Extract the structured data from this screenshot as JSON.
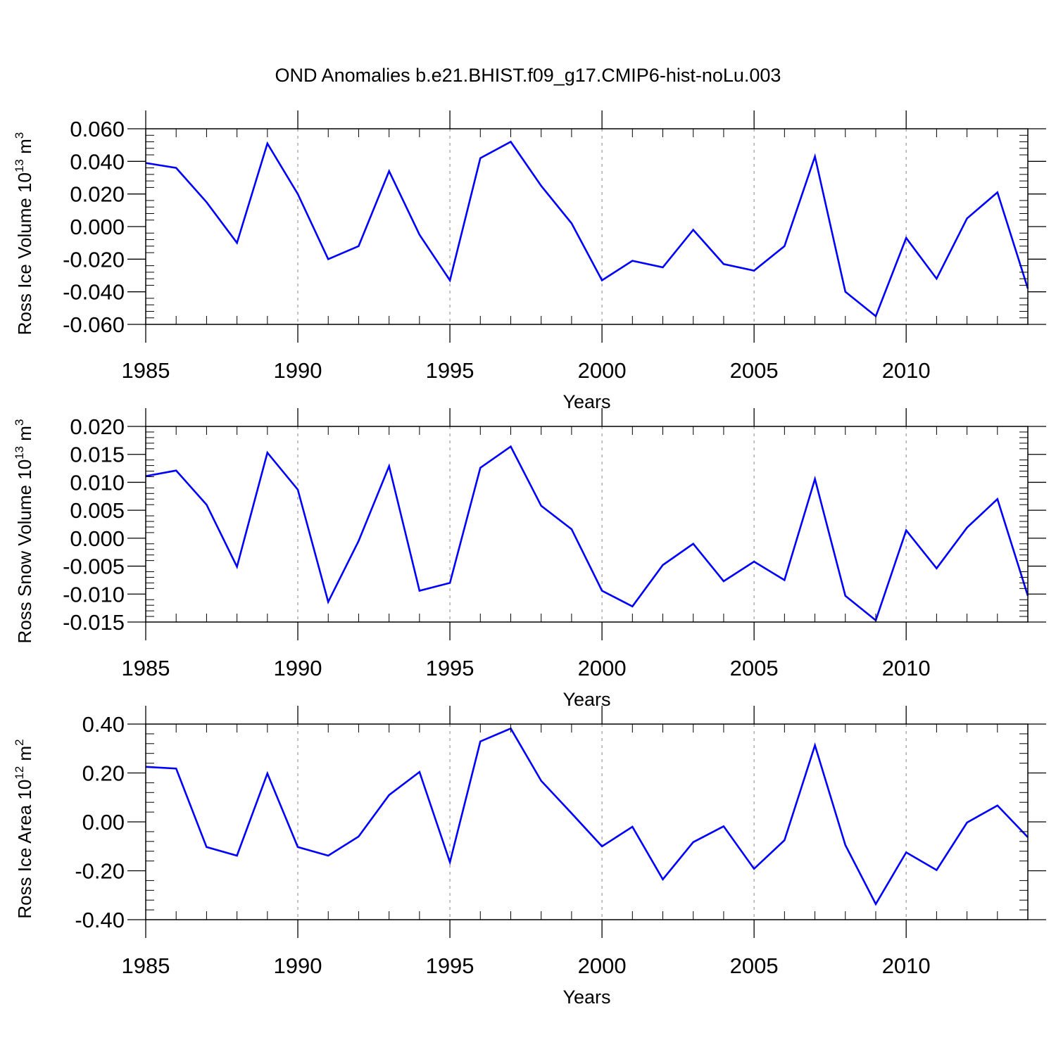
{
  "title": "OND Anomalies b.e21.BHIST.f09_g17.CMIP6-hist-noLu.003",
  "colors": {
    "line": "#0000ff",
    "axis": "#000000",
    "grid": "#999999"
  },
  "chart_data": [
    {
      "type": "line",
      "ylabel": "Ross Ice Volume 10",
      "ylabel_sup": "13",
      "ylabel_unit": "m",
      "ylabel_unit_sup": "3",
      "xlabel": "Years",
      "xlim": [
        1985,
        2014
      ],
      "ylim": [
        -0.06,
        0.06
      ],
      "yticks": [
        "0.060",
        "0.040",
        "0.020",
        "0.000",
        "-0.020",
        "-0.040",
        "-0.060"
      ],
      "ytick_values": [
        0.06,
        0.04,
        0.02,
        0.0,
        -0.02,
        -0.04,
        -0.06
      ],
      "xticks": [
        "1985",
        "1990",
        "1995",
        "2000",
        "2005",
        "2010"
      ],
      "xtick_values": [
        1985,
        1990,
        1995,
        2000,
        2005,
        2010
      ],
      "grid": "vertical dashed at major x ticks",
      "x": [
        1985,
        1986,
        1987,
        1988,
        1989,
        1990,
        1991,
        1992,
        1993,
        1994,
        1995,
        1996,
        1997,
        1998,
        1999,
        2000,
        2001,
        2002,
        2003,
        2004,
        2005,
        2006,
        2007,
        2008,
        2009,
        2010,
        2011,
        2012,
        2013,
        2014
      ],
      "values": [
        0.039,
        0.036,
        0.015,
        -0.01,
        0.051,
        0.02,
        -0.02,
        -0.012,
        0.034,
        -0.005,
        -0.033,
        0.042,
        0.052,
        0.025,
        0.002,
        -0.033,
        -0.021,
        -0.025,
        -0.002,
        -0.023,
        -0.027,
        -0.012,
        0.043,
        -0.04,
        -0.055,
        -0.007,
        -0.032,
        0.005,
        0.021,
        -0.038
      ]
    },
    {
      "type": "line",
      "ylabel": "Ross Snow Volume 10",
      "ylabel_sup": "13",
      "ylabel_unit": "m",
      "ylabel_unit_sup": "3",
      "xlabel": "Years",
      "xlim": [
        1985,
        2014
      ],
      "ylim": [
        -0.015,
        0.02
      ],
      "yticks": [
        "0.020",
        "0.015",
        "0.010",
        "0.005",
        "0.000",
        "-0.005",
        "-0.010",
        "-0.015"
      ],
      "ytick_values": [
        0.02,
        0.015,
        0.01,
        0.005,
        0.0,
        -0.005,
        -0.01,
        -0.015
      ],
      "xticks": [
        "1985",
        "1990",
        "1995",
        "2000",
        "2005",
        "2010"
      ],
      "xtick_values": [
        1985,
        1990,
        1995,
        2000,
        2005,
        2010
      ],
      "grid": "vertical dashed at major x ticks",
      "x": [
        1985,
        1986,
        1987,
        1988,
        1989,
        1990,
        1991,
        1992,
        1993,
        1994,
        1995,
        1996,
        1997,
        1998,
        1999,
        2000,
        2001,
        2002,
        2003,
        2004,
        2005,
        2006,
        2007,
        2008,
        2009,
        2010,
        2011,
        2012,
        2013,
        2014
      ],
      "values": [
        0.0111,
        0.0121,
        0.006,
        -0.0051,
        0.0153,
        0.0087,
        -0.0114,
        -0.0005,
        0.0129,
        -0.0094,
        -0.008,
        0.0126,
        0.0164,
        0.0058,
        0.0016,
        -0.0094,
        -0.0122,
        -0.0048,
        -0.001,
        -0.0077,
        -0.0042,
        -0.0075,
        0.0106,
        -0.0103,
        -0.0147,
        0.0014,
        -0.0054,
        0.0019,
        0.007,
        -0.0103
      ]
    },
    {
      "type": "line",
      "ylabel": "Ross Ice Area 10",
      "ylabel_sup": "12",
      "ylabel_unit": "m",
      "ylabel_unit_sup": "2",
      "xlabel": "Years",
      "xlim": [
        1985,
        2014
      ],
      "ylim": [
        -0.4,
        0.4
      ],
      "yticks": [
        "0.40",
        "0.20",
        "0.00",
        "-0.20",
        "-0.40"
      ],
      "ytick_values": [
        0.4,
        0.2,
        0.0,
        -0.2,
        -0.4
      ],
      "xticks": [
        "1985",
        "1990",
        "1995",
        "2000",
        "2005",
        "2010"
      ],
      "xtick_values": [
        1985,
        1990,
        1995,
        2000,
        2005,
        2010
      ],
      "grid": "vertical dashed at major x ticks",
      "x": [
        1985,
        1986,
        1987,
        1988,
        1989,
        1990,
        1991,
        1992,
        1993,
        1994,
        1995,
        1996,
        1997,
        1998,
        1999,
        2000,
        2001,
        2002,
        2003,
        2004,
        2005,
        2006,
        2007,
        2008,
        2009,
        2010,
        2011,
        2012,
        2013,
        2014
      ],
      "values": [
        0.225,
        0.218,
        -0.103,
        -0.138,
        0.198,
        -0.103,
        -0.138,
        -0.06,
        0.11,
        0.204,
        -0.165,
        0.329,
        0.382,
        0.168,
        0.035,
        -0.1,
        -0.02,
        -0.235,
        -0.083,
        -0.018,
        -0.192,
        -0.075,
        0.313,
        -0.095,
        -0.336,
        -0.125,
        -0.197,
        -0.003,
        0.067,
        -0.063
      ]
    }
  ]
}
